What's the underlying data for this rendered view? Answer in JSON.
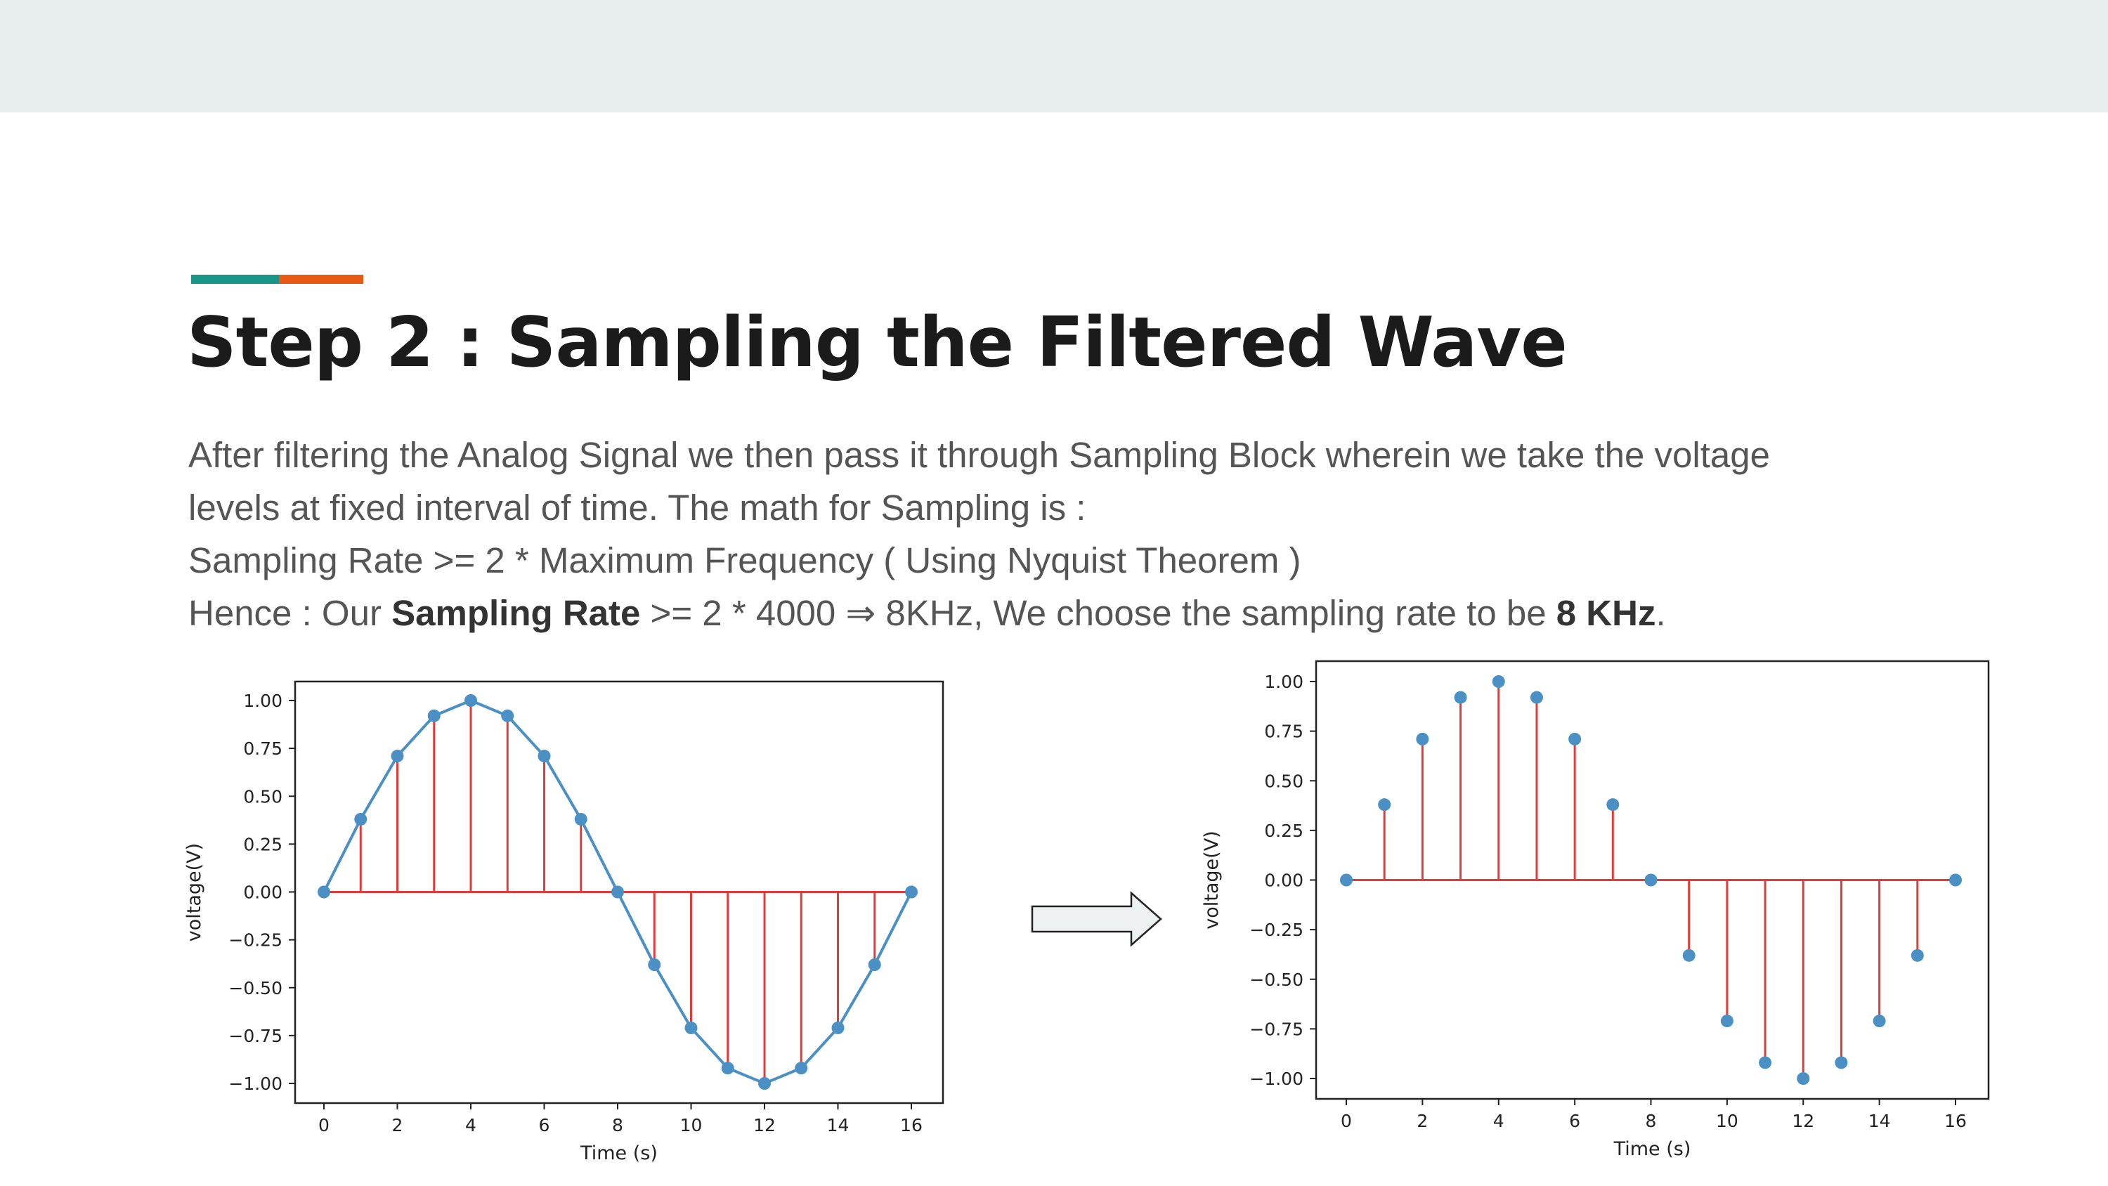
{
  "slide": {
    "title": "Step 2 : Sampling the Filtered Wave",
    "accent_colors": [
      "#179688",
      "#e65a14"
    ],
    "body": {
      "line1": "After filtering the Analog Signal we then pass it through Sampling Block wherein we take the voltage",
      "line2": "levels at fixed interval of time. The math for Sampling is :",
      "line3": "Sampling Rate >= 2 * Maximum Frequency     ( Using Nyquist Theorem )",
      "line4_prefix": "Hence :  Our ",
      "line4_bold1": "Sampling Rate",
      "line4_mid": " >= 2 * 4000 ⇒ 8KHz, We choose the sampling rate to be ",
      "line4_bold2": "8 KHz",
      "line4_suffix": "."
    },
    "arrow_icon": "right-arrow-icon"
  },
  "chart_data": [
    {
      "type": "line",
      "xlabel": "Time (s)",
      "ylabel": "voltage(V)",
      "xlim": [
        0,
        16
      ],
      "ylim": [
        -1.0,
        1.0
      ],
      "xticks": [
        "0",
        "2",
        "4",
        "6",
        "8",
        "10",
        "12",
        "14",
        "16"
      ],
      "yticks": [
        "1.00",
        "0.75",
        "0.50",
        "0.25",
        "0.00",
        "−0.25",
        "−0.50",
        "−0.75",
        "−1.00"
      ],
      "x": [
        0,
        1,
        2,
        3,
        4,
        5,
        6,
        7,
        8,
        9,
        10,
        11,
        12,
        13,
        14,
        15,
        16
      ],
      "y": [
        0.0,
        0.38,
        0.71,
        0.92,
        1.0,
        0.92,
        0.71,
        0.38,
        0.0,
        -0.38,
        -0.71,
        -0.92,
        -1.0,
        -0.92,
        -0.71,
        -0.38,
        0.0
      ],
      "line_color": "#4a90c4",
      "stem_color": "#e03c3c",
      "grid": false,
      "connected_line": true
    },
    {
      "type": "scatter",
      "xlabel": "Time (s)",
      "ylabel": "voltage(V)",
      "xlim": [
        0,
        16
      ],
      "ylim": [
        -1.0,
        1.0
      ],
      "xticks": [
        "0",
        "2",
        "4",
        "6",
        "8",
        "10",
        "12",
        "14",
        "16"
      ],
      "yticks": [
        "1.00",
        "0.75",
        "0.50",
        "0.25",
        "0.00",
        "−0.25",
        "−0.50",
        "−0.75",
        "−1.00"
      ],
      "x": [
        0,
        1,
        2,
        3,
        4,
        5,
        6,
        7,
        8,
        9,
        10,
        11,
        12,
        13,
        14,
        15,
        16
      ],
      "y": [
        0.0,
        0.38,
        0.71,
        0.92,
        1.0,
        0.92,
        0.71,
        0.38,
        0.0,
        -0.38,
        -0.71,
        -0.92,
        -1.0,
        -0.92,
        -0.71,
        -0.38,
        0.0
      ],
      "line_color": "#4a90c4",
      "stem_color": "#e03c3c",
      "grid": false,
      "connected_line": false
    }
  ]
}
